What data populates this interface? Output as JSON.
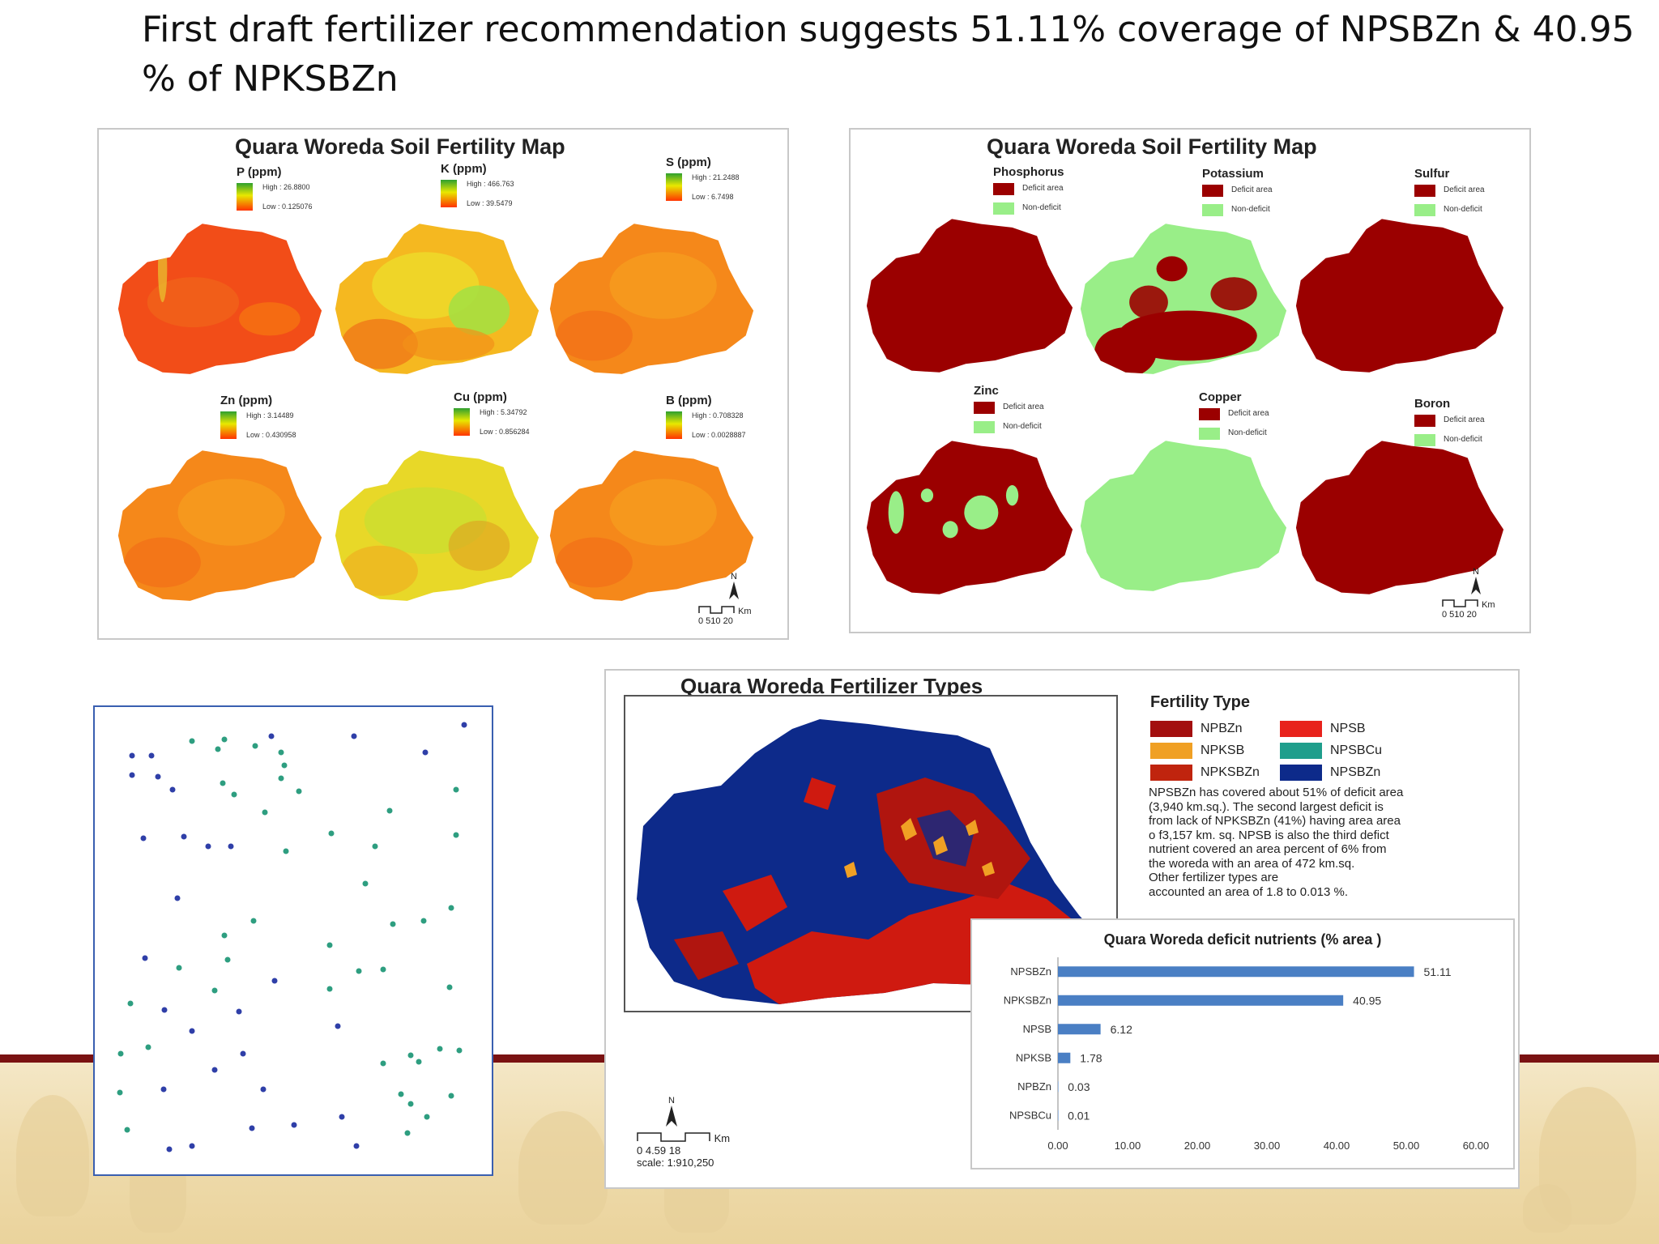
{
  "slide": {
    "title": "First draft fertilizer recommendation suggests 51.11% coverage of NPSBZn  & 40.95 % of NPKSBZn"
  },
  "left_map": {
    "title": "Quara Woreda Soil Fertility Map",
    "panels": [
      {
        "label": "P (ppm)",
        "high": "High : 26.8800",
        "low": "Low : 0.125076",
        "tone": "red"
      },
      {
        "label": "K (ppm)",
        "high": "High : 466.763",
        "low": "Low : 39.5479",
        "tone": "mixed"
      },
      {
        "label": "S (ppm)",
        "high": "High : 21.2488",
        "low": "Low : 6.7498",
        "tone": "orange"
      },
      {
        "label": "Zn (ppm)",
        "high": "High : 3.14489",
        "low": "Low : 0.430958",
        "tone": "orange"
      },
      {
        "label": "Cu (ppm)",
        "high": "High : 5.34792",
        "low": "Low : 0.856284",
        "tone": "yellow"
      },
      {
        "label": "B (ppm)",
        "high": "High : 0.708328",
        "low": "Low : 0.0028887",
        "tone": "orange"
      }
    ],
    "north": "N",
    "scale_unit": "Km",
    "scale_ticks": "0 510  20"
  },
  "right_map": {
    "title": "Quara Woreda Soil Fertility Map",
    "panels": [
      {
        "label": "Phosphorus",
        "deficit": "Deficit area",
        "non": "Non-deficit",
        "tone": "deficit"
      },
      {
        "label": "Potassium",
        "deficit": "Deficit area",
        "non": "Non-deficit",
        "tone": "mixedK"
      },
      {
        "label": "Sulfur",
        "deficit": "Deficit area",
        "non": "Non-deficit",
        "tone": "deficit"
      },
      {
        "label": "Zinc",
        "deficit": "Deficit area",
        "non": "Non-deficit",
        "tone": "mixedZn"
      },
      {
        "label": "Copper",
        "deficit": "Deficit area",
        "non": "Non-deficit",
        "tone": "non"
      },
      {
        "label": "Boron",
        "deficit": "Deficit area",
        "non": "Non-deficit",
        "tone": "deficit"
      }
    ],
    "north": "N",
    "scale_unit": "Km",
    "scale_ticks": "0 510  20",
    "colors": {
      "deficit": "#9b0000",
      "non": "#99ee88"
    }
  },
  "fertilizer_map": {
    "title": "Quara Woreda Fertilizer Types",
    "legend_title": "Fertility Type",
    "legend": [
      {
        "name": "NPBZn",
        "color": "#a30f0f"
      },
      {
        "name": "NPSB",
        "color": "#e8231c"
      },
      {
        "name": "NPKSB",
        "color": "#f0a024"
      },
      {
        "name": "NPSBCu",
        "color": "#1f9e8c"
      },
      {
        "name": "NPKSBZn",
        "color": "#c0240e"
      },
      {
        "name": "NPSBZn",
        "color": "#0d2a8a"
      }
    ],
    "description": [
      "NPSBZn has covered about 51% of deficit area",
      "(3,940 km.sq.). The second largest deficit is",
      "from lack of NPKSBZn (41%) having area area",
      "o f3,157 km. sq. NPSB is also the third defict",
      "nutrient covered an area percent of 6% from",
      "the woreda with an area of  472 km.sq.",
      "Other fertilizer types are",
      "accounted an area of 1.8  to 0.013 %."
    ],
    "north": "N",
    "scale_unit": "Km",
    "scale_ticks": "0 4.59      18",
    "scale_text": "scale: 1:910,250"
  },
  "chart_data": {
    "type": "bar",
    "orientation": "horizontal",
    "title": "Quara Woreda deficit nutrients (% area )",
    "categories": [
      "NPSBZn",
      "NPKSBZn",
      "NPSB",
      "NPKSB",
      "NPBZn",
      "NPSBCu"
    ],
    "values": [
      51.11,
      40.95,
      6.12,
      1.78,
      0.03,
      0.01
    ],
    "value_labels": [
      "51.11",
      "40.95",
      "6.12",
      "1.78",
      "0.03",
      "0.01"
    ],
    "xlim": [
      0,
      60
    ],
    "xticks": [
      "0.00",
      "10.00",
      "20.00",
      "30.00",
      "40.00",
      "50.00",
      "60.00"
    ],
    "bar_color": "#4a7fc4",
    "xlabel": "",
    "ylabel": ""
  }
}
